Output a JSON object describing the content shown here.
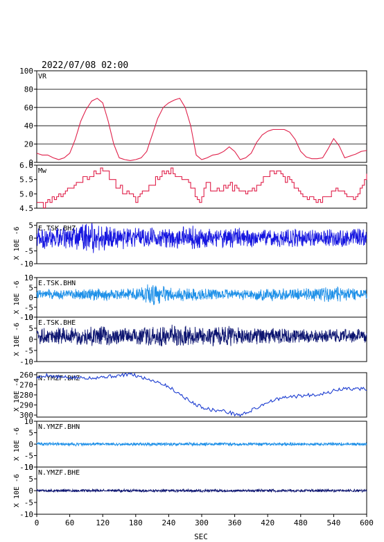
{
  "header": {
    "timestamp": "2022/07/08 02:00"
  },
  "x_axis": {
    "label": "SEC",
    "range": [
      0,
      600
    ],
    "ticks": [
      0,
      60,
      120,
      180,
      240,
      300,
      360,
      420,
      480,
      540,
      600
    ]
  },
  "chart_data": [
    {
      "type": "line",
      "name": "VR",
      "color": "#e0204a",
      "grid": true,
      "ylim": [
        0,
        100
      ],
      "yticks": [
        0,
        20,
        40,
        60,
        80,
        100
      ],
      "ylabel": "",
      "kind": "keypoints",
      "step": 5,
      "points": [
        [
          0,
          10
        ],
        [
          10,
          8
        ],
        [
          20,
          8
        ],
        [
          30,
          5
        ],
        [
          40,
          3
        ],
        [
          50,
          5
        ],
        [
          60,
          10
        ],
        [
          70,
          25
        ],
        [
          80,
          45
        ],
        [
          90,
          58
        ],
        [
          100,
          67
        ],
        [
          110,
          70
        ],
        [
          120,
          65
        ],
        [
          130,
          45
        ],
        [
          140,
          20
        ],
        [
          150,
          5
        ],
        [
          160,
          3
        ],
        [
          170,
          2
        ],
        [
          180,
          3
        ],
        [
          190,
          5
        ],
        [
          200,
          12
        ],
        [
          210,
          30
        ],
        [
          220,
          48
        ],
        [
          230,
          60
        ],
        [
          240,
          65
        ],
        [
          250,
          68
        ],
        [
          260,
          70
        ],
        [
          270,
          60
        ],
        [
          280,
          40
        ],
        [
          290,
          8
        ],
        [
          300,
          3
        ],
        [
          310,
          5
        ],
        [
          320,
          8
        ],
        [
          330,
          9
        ],
        [
          340,
          12
        ],
        [
          350,
          17
        ],
        [
          360,
          12
        ],
        [
          370,
          3
        ],
        [
          380,
          5
        ],
        [
          390,
          10
        ],
        [
          400,
          22
        ],
        [
          410,
          30
        ],
        [
          420,
          34
        ],
        [
          430,
          36
        ],
        [
          440,
          36
        ],
        [
          450,
          36
        ],
        [
          460,
          33
        ],
        [
          470,
          25
        ],
        [
          480,
          12
        ],
        [
          490,
          6
        ],
        [
          500,
          4
        ],
        [
          510,
          4
        ],
        [
          520,
          5
        ],
        [
          530,
          15
        ],
        [
          540,
          26
        ],
        [
          550,
          18
        ],
        [
          560,
          5
        ],
        [
          570,
          7
        ],
        [
          580,
          9
        ],
        [
          590,
          12
        ],
        [
          600,
          13
        ]
      ]
    },
    {
      "type": "line",
      "name": "Mw",
      "color": "#e0204a",
      "grid": false,
      "ylim": [
        4.5,
        6.0
      ],
      "yticks": [
        4.5,
        5.0,
        5.5,
        6.0
      ],
      "ylabel": "",
      "kind": "keypoints",
      "step": 4,
      "jitter": 0.08,
      "seed": 11,
      "points": [
        [
          0,
          4.8
        ],
        [
          15,
          4.6
        ],
        [
          30,
          4.9
        ],
        [
          45,
          5.0
        ],
        [
          60,
          5.2
        ],
        [
          75,
          5.4
        ],
        [
          90,
          5.6
        ],
        [
          105,
          5.8
        ],
        [
          120,
          5.75
        ],
        [
          135,
          5.6
        ],
        [
          150,
          5.2
        ],
        [
          165,
          5.0
        ],
        [
          180,
          4.8
        ],
        [
          195,
          5.1
        ],
        [
          210,
          5.4
        ],
        [
          225,
          5.7
        ],
        [
          240,
          5.8
        ],
        [
          255,
          5.7
        ],
        [
          270,
          5.5
        ],
        [
          285,
          5.2
        ],
        [
          295,
          4.6
        ],
        [
          305,
          5.4
        ],
        [
          320,
          5.2
        ],
        [
          335,
          5.1
        ],
        [
          350,
          5.3
        ],
        [
          365,
          5.2
        ],
        [
          380,
          5.0
        ],
        [
          395,
          5.1
        ],
        [
          410,
          5.5
        ],
        [
          425,
          5.8
        ],
        [
          440,
          5.7
        ],
        [
          455,
          5.5
        ],
        [
          470,
          5.3
        ],
        [
          485,
          5.0
        ],
        [
          500,
          4.8
        ],
        [
          515,
          4.7
        ],
        [
          530,
          5.0
        ],
        [
          545,
          5.2
        ],
        [
          560,
          5.0
        ],
        [
          575,
          4.8
        ],
        [
          590,
          5.2
        ],
        [
          600,
          5.6
        ]
      ]
    },
    {
      "type": "line",
      "name": "E.TSK.BHZ",
      "color": "#1616e0",
      "grid": false,
      "ylim": [
        -10,
        6
      ],
      "yticks": [
        -10,
        -5,
        0,
        5
      ],
      "ylabel": "X 10E -6",
      "kind": "wave",
      "step": 0.5,
      "seed": 21,
      "offset": 0,
      "envelope": [
        [
          0,
          4
        ],
        [
          60,
          4.5
        ],
        [
          100,
          6
        ],
        [
          140,
          5
        ],
        [
          160,
          4
        ],
        [
          240,
          4
        ],
        [
          280,
          5
        ],
        [
          300,
          3.5
        ],
        [
          360,
          4
        ],
        [
          400,
          3.5
        ],
        [
          480,
          3.5
        ],
        [
          540,
          3.5
        ],
        [
          600,
          4
        ]
      ]
    },
    {
      "type": "line",
      "name": "E.TSK.BHN",
      "color": "#1e90e8",
      "grid": false,
      "ylim": [
        -10,
        10
      ],
      "yticks": [
        -10,
        -5,
        0,
        5,
        10
      ],
      "ylabel": "X 10E -6",
      "kind": "wave",
      "step": 0.5,
      "seed": 33,
      "offset": 1.5,
      "envelope": [
        [
          0,
          2.5
        ],
        [
          60,
          2.5
        ],
        [
          120,
          3.5
        ],
        [
          150,
          2.5
        ],
        [
          190,
          4
        ],
        [
          210,
          6
        ],
        [
          240,
          3.5
        ],
        [
          300,
          3
        ],
        [
          360,
          2.5
        ],
        [
          420,
          3.5
        ],
        [
          480,
          3
        ],
        [
          540,
          4
        ],
        [
          600,
          3
        ]
      ]
    },
    {
      "type": "line",
      "name": "E.TSK.BHE",
      "color": "#0c1470",
      "grid": false,
      "ylim": [
        -10,
        10
      ],
      "yticks": [
        -10,
        -5,
        0,
        5,
        10
      ],
      "ylabel": "X 10E -6",
      "kind": "wave",
      "step": 0.5,
      "seed": 47,
      "offset": 1.5,
      "envelope": [
        [
          0,
          3.5
        ],
        [
          60,
          4
        ],
        [
          120,
          4.5
        ],
        [
          180,
          4
        ],
        [
          240,
          5
        ],
        [
          300,
          4
        ],
        [
          340,
          5
        ],
        [
          360,
          4
        ],
        [
          420,
          3.5
        ],
        [
          480,
          3
        ],
        [
          540,
          3
        ],
        [
          600,
          3.5
        ]
      ]
    },
    {
      "type": "line",
      "name": "N.YMZF.BHZ",
      "color": "#1a3bd0",
      "grid": false,
      "ylim": [
        -302,
        -258
      ],
      "yticks": [
        -260,
        -270,
        -280,
        -290,
        -300
      ],
      "yticklabels": [
        "260",
        "270",
        "280",
        "290",
        "300"
      ],
      "ylabel": "X 10E -4",
      "kind": "keypoints",
      "step": 2,
      "jitter": 0.4,
      "seed": 5,
      "points": [
        [
          0,
          -263
        ],
        [
          10,
          -262
        ],
        [
          20,
          -260
        ],
        [
          30,
          -262
        ],
        [
          60,
          -263
        ],
        [
          100,
          -263
        ],
        [
          150,
          -261
        ],
        [
          170,
          -259
        ],
        [
          180,
          -261
        ],
        [
          200,
          -264
        ],
        [
          220,
          -267
        ],
        [
          240,
          -272
        ],
        [
          260,
          -279
        ],
        [
          280,
          -287
        ],
        [
          300,
          -292
        ],
        [
          320,
          -295
        ],
        [
          340,
          -296
        ],
        [
          360,
          -299
        ],
        [
          370,
          -300
        ],
        [
          380,
          -298
        ],
        [
          400,
          -293
        ],
        [
          420,
          -287
        ],
        [
          440,
          -284
        ],
        [
          460,
          -282
        ],
        [
          480,
          -281
        ],
        [
          500,
          -280
        ],
        [
          530,
          -278
        ],
        [
          545,
          -275
        ],
        [
          560,
          -274
        ],
        [
          600,
          -274
        ]
      ]
    },
    {
      "type": "line",
      "name": "N.YMZF.BHN",
      "color": "#1e90e8",
      "grid": false,
      "ylim": [
        -10,
        10
      ],
      "yticks": [
        -10,
        -5,
        0,
        5,
        10
      ],
      "ylabel": "X 10E -6",
      "kind": "wave",
      "step": 0.5,
      "seed": 61,
      "offset": 0,
      "envelope": [
        [
          0,
          0.7
        ],
        [
          600,
          0.7
        ]
      ]
    },
    {
      "type": "line",
      "name": "N.YMZF.BHE",
      "color": "#0c1470",
      "grid": false,
      "ylim": [
        -10,
        10
      ],
      "yticks": [
        -10,
        -5,
        0,
        5,
        10
      ],
      "ylabel": "X 10E -6",
      "kind": "wave",
      "step": 0.5,
      "seed": 73,
      "offset": 0,
      "envelope": [
        [
          0,
          0.6
        ],
        [
          600,
          0.6
        ]
      ]
    }
  ]
}
